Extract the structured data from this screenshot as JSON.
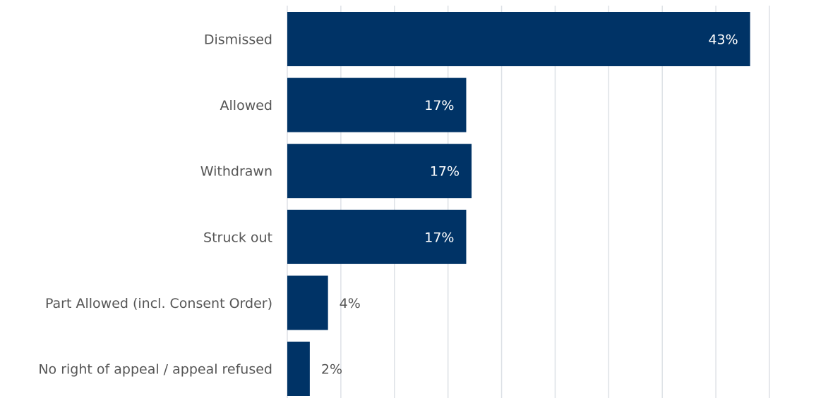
{
  "chart_data": {
    "type": "bar",
    "orientation": "horizontal",
    "categories": [
      "Dismissed",
      "Allowed",
      "Withdrawn",
      "Struck out",
      "Part Allowed (incl. Consent Order)",
      "No right of appeal / appeal refused"
    ],
    "values": [
      43.2,
      16.7,
      17.2,
      16.7,
      3.8,
      2.1
    ],
    "value_labels": [
      "43%",
      "17%",
      "17%",
      "17%",
      "4%",
      "2%"
    ],
    "xlim": [
      0,
      45
    ],
    "grid": true,
    "bar_color": "#003366",
    "gridline_color": "#dde1e6",
    "label_color": "#555555",
    "inside_label_color": "#ffffff"
  }
}
